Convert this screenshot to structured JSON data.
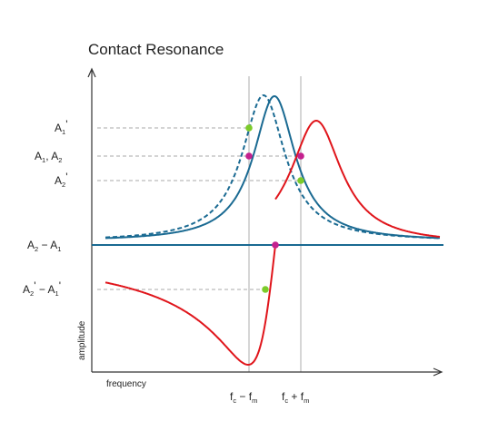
{
  "title": "Contact Resonance",
  "axes": {
    "x_label": "frequency",
    "y_label": "amplitude"
  },
  "y_labels": {
    "a1_prime": {
      "main": "A",
      "sub": "1",
      "tail": "'"
    },
    "a1_a2": {
      "main1": "A",
      "sub1": "1",
      "sep": ", ",
      "main2": "A",
      "sub2": "2"
    },
    "a2_prime": {
      "main": "A",
      "sub": "2",
      "tail": "'"
    },
    "diff": {
      "main1": "A",
      "sub1": "2",
      "op": " − ",
      "main2": "A",
      "sub2": "1"
    },
    "diff_prime": {
      "main1": "A",
      "sub1": "2",
      "mid": "'",
      "op": " − ",
      "main2": "A",
      "sub2": "1",
      "tail": "'"
    }
  },
  "x_labels": {
    "minus": {
      "main1": "f",
      "sub1": "c",
      "op": " − ",
      "main2": "f",
      "sub2": "m"
    },
    "plus": {
      "main1": "f",
      "sub1": "c",
      "op": " + ",
      "main2": "f",
      "sub2": "m"
    }
  },
  "colors": {
    "blue": "#1a6a92",
    "red": "#e0151b",
    "magenta": "#c4208e",
    "green": "#7ccb2a",
    "guide": "#bbbbbb",
    "axis": "#333333"
  }
}
